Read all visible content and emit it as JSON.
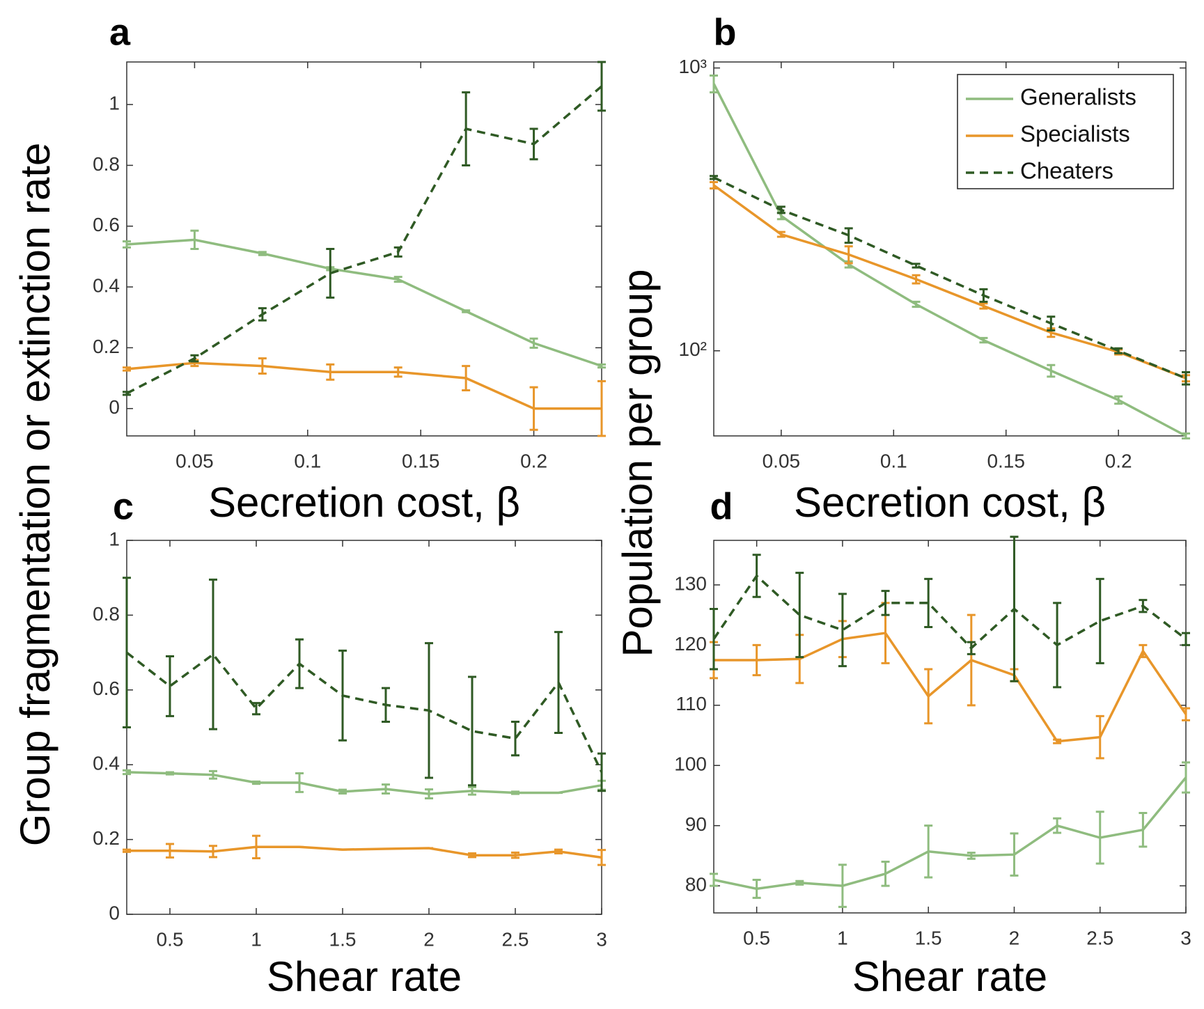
{
  "chart_data": [
    {
      "type": "line",
      "panel": "a",
      "ylabel": "Group fragmentation or extinction rate",
      "xlabel": "Secretion cost, β",
      "x": [
        0.02,
        0.05,
        0.08,
        0.11,
        0.14,
        0.17,
        0.2,
        0.23
      ],
      "xlim": [
        0.02,
        0.23
      ],
      "xticks": [
        0.05,
        0.1,
        0.15,
        0.2
      ],
      "ylim": [
        -0.09,
        1.14
      ],
      "yticks": [
        0,
        0.2,
        0.4,
        0.6,
        0.8,
        1
      ],
      "series": [
        {
          "color": "#8fbc7f",
          "linestyle": "solid",
          "values": [
            0.54,
            0.555,
            0.51,
            0.46,
            0.425,
            0.32,
            0.215,
            0.14
          ],
          "errors": [
            0.01,
            0.03,
            0.005,
            0.005,
            0.008,
            0.003,
            0.015,
            0.005
          ]
        },
        {
          "color": "#e8962a",
          "linestyle": "solid",
          "values": [
            0.13,
            0.15,
            0.14,
            0.12,
            0.12,
            0.1,
            0,
            0
          ],
          "errors": [
            0.005,
            0.01,
            0.025,
            0.025,
            0.015,
            0.04,
            0.07,
            0.09
          ]
        },
        {
          "color": "#2f5a24",
          "linestyle": "dashed",
          "values": [
            0.05,
            0.165,
            0.31,
            0.445,
            0.515,
            0.92,
            0.87,
            1.06
          ],
          "errors": [
            0.005,
            0.01,
            0.02,
            0.08,
            0.015,
            0.12,
            0.05,
            0.08
          ]
        }
      ]
    },
    {
      "type": "line",
      "panel": "b",
      "ylabel": "Population per group",
      "xlabel": "Secretion cost, β",
      "yscale": "log",
      "legend": "upper right",
      "x": [
        0.02,
        0.05,
        0.08,
        0.11,
        0.14,
        0.17,
        0.2,
        0.23
      ],
      "xlim": [
        0.02,
        0.23
      ],
      "xticks": [
        0.05,
        0.1,
        0.15,
        0.2
      ],
      "ylim": [
        50,
        1050
      ],
      "yticks": [
        {
          "value": 100,
          "label": "10²"
        },
        {
          "value": 1000,
          "label": "10³"
        }
      ],
      "series": [
        {
          "name": "Generalists",
          "color": "#8fbc7f",
          "linestyle": "solid",
          "values": [
            880,
            300,
            202,
            146,
            109,
            85,
            67,
            50
          ],
          "errors": [
            60,
            8,
            5,
            3,
            2,
            4,
            2,
            1
          ]
        },
        {
          "name": "Specialists",
          "color": "#e8962a",
          "linestyle": "solid",
          "values": [
            385,
            258,
            219,
            179,
            144,
            116,
            99,
            80
          ],
          "errors": [
            10,
            5,
            15,
            6,
            3,
            4,
            2,
            2
          ]
        },
        {
          "name": "Cheaters",
          "color": "#2f5a24",
          "linestyle": "dashed",
          "values": [
            410,
            315,
            256,
            200,
            157,
            125,
            100,
            80
          ],
          "errors": [
            5,
            8,
            15,
            3,
            8,
            7,
            2,
            4
          ]
        }
      ]
    },
    {
      "type": "line",
      "panel": "c",
      "xlabel": "Shear rate",
      "x": [
        0.25,
        0.5,
        0.75,
        1,
        1.25,
        1.5,
        1.75,
        2,
        2.25,
        2.5,
        2.75,
        3
      ],
      "xlim": [
        0.25,
        3
      ],
      "xticks": [
        0.5,
        1,
        1.5,
        2,
        2.5,
        3
      ],
      "ylim": [
        0,
        1
      ],
      "yticks": [
        0,
        0.2,
        0.4,
        0.6,
        0.8,
        1
      ],
      "series": [
        {
          "color": "#8fbc7f",
          "linestyle": "solid",
          "values": [
            0.38,
            0.377,
            0.373,
            0.352,
            0.352,
            0.328,
            0.335,
            0.322,
            0.33,
            0.325,
            0.325,
            0.345
          ],
          "errors": [
            0.005,
            0.003,
            0.01,
            0.003,
            0.025,
            0.005,
            0.012,
            0.012,
            0.01,
            0.003,
            0,
            0.012
          ]
        },
        {
          "color": "#e8962a",
          "linestyle": "solid",
          "values": [
            0.17,
            0.17,
            0.168,
            0.18,
            0.18,
            0.173,
            0.175,
            0.177,
            0.158,
            0.158,
            0.168,
            0.152
          ],
          "errors": [
            0.003,
            0.018,
            0.015,
            0.03,
            0,
            0,
            0,
            0,
            0.005,
            0.007,
            0.005,
            0.02
          ]
        },
        {
          "color": "#2f5a24",
          "linestyle": "dashed",
          "values": [
            0.7,
            0.61,
            0.695,
            0.55,
            0.67,
            0.585,
            0.56,
            0.545,
            0.49,
            0.47,
            0.62,
            0.38
          ],
          "errors": [
            0.2,
            0.08,
            0.2,
            0.015,
            0.065,
            0.12,
            0.045,
            0.18,
            0.145,
            0.045,
            0.135,
            0.05
          ]
        }
      ]
    },
    {
      "type": "line",
      "panel": "d",
      "xlabel": "Shear rate",
      "x": [
        0.25,
        0.5,
        0.75,
        1,
        1.25,
        1.5,
        1.75,
        2,
        2.25,
        2.5,
        2.75,
        3
      ],
      "xlim": [
        0.25,
        3
      ],
      "xticks": [
        0.5,
        1,
        1.5,
        2,
        2.5,
        3
      ],
      "ylim": [
        75.5,
        137.4
      ],
      "yticks": [
        80,
        90,
        100,
        110,
        120,
        130
      ],
      "series": [
        {
          "color": "#8fbc7f",
          "linestyle": "solid",
          "values": [
            81,
            79.5,
            80.5,
            80,
            82,
            85.7,
            85,
            85.2,
            90,
            88,
            89.3,
            98
          ],
          "errors": [
            1,
            1.5,
            0.3,
            3.5,
            2,
            4.3,
            0.5,
            3.5,
            1.2,
            4.3,
            2.8,
            2.5
          ]
        },
        {
          "color": "#e8962a",
          "linestyle": "solid",
          "values": [
            117.5,
            117.5,
            117.7,
            121,
            122,
            111.5,
            117.5,
            115,
            104,
            104.7,
            119,
            108.5
          ],
          "errors": [
            3,
            2.5,
            4,
            3,
            5,
            4.5,
            7.5,
            1,
            0.3,
            3.5,
            1,
            1
          ]
        },
        {
          "color": "#2f5a24",
          "linestyle": "dashed",
          "values": [
            121,
            131.5,
            125,
            122.5,
            127,
            127,
            119.5,
            126,
            120,
            124,
            126.5,
            121
          ],
          "errors": [
            5,
            3.5,
            7,
            6,
            2,
            4,
            1,
            12,
            7,
            7,
            1,
            1
          ]
        }
      ]
    }
  ]
}
